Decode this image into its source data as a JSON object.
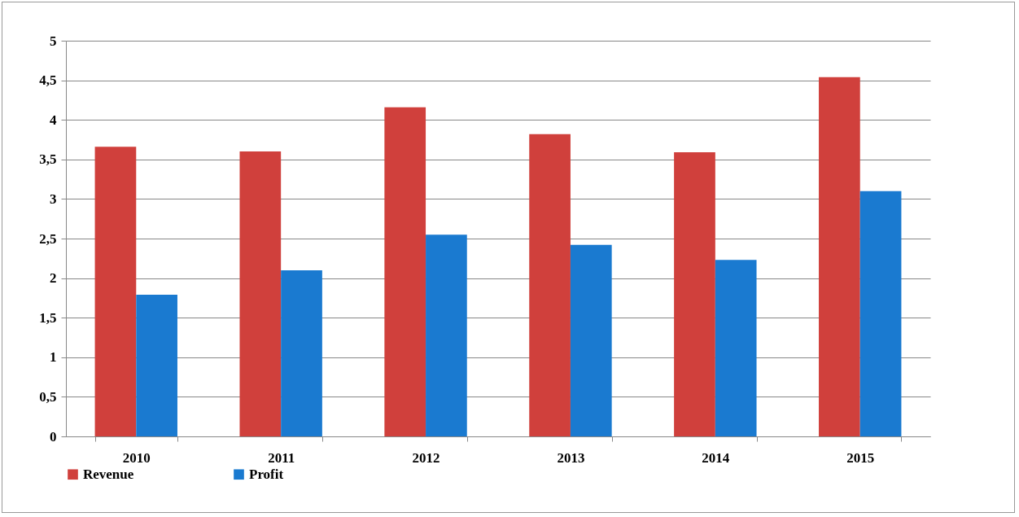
{
  "chart_data": {
    "type": "bar",
    "categories": [
      "2010",
      "2011",
      "2012",
      "2013",
      "2014",
      "2015"
    ],
    "series": [
      {
        "name": "Revenue",
        "color": "#d0403c",
        "values": [
          3.66,
          3.6,
          4.16,
          3.82,
          3.59,
          4.54
        ]
      },
      {
        "name": "Profit",
        "color": "#1a7ad0",
        "values": [
          1.79,
          2.1,
          2.55,
          2.42,
          2.23,
          3.1
        ]
      }
    ],
    "ylim": [
      0,
      5
    ],
    "yticks": [
      0,
      {
        "value": 0.5,
        "label": "0,5"
      },
      1,
      {
        "value": 1.5,
        "label": "1,5"
      },
      2,
      {
        "value": 2.5,
        "label": "2,5"
      },
      3,
      {
        "value": 3.5,
        "label": "3,5"
      },
      4,
      {
        "value": 4.5,
        "label": "4,5"
      },
      5
    ],
    "grid": "y",
    "legend": "bottom"
  }
}
